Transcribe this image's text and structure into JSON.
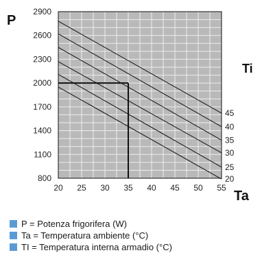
{
  "chart_data": {
    "type": "line",
    "title": "",
    "y_axis": {
      "letter": "P",
      "range": [
        800,
        2900
      ],
      "ticks": [
        800,
        1100,
        1400,
        1700,
        2000,
        2300,
        2600,
        2900
      ]
    },
    "x_axis": {
      "letter": "Ta",
      "range": [
        20,
        55
      ],
      "ticks": [
        20,
        25,
        30,
        35,
        40,
        45,
        50,
        55
      ]
    },
    "series_group_label": "Ti",
    "grid": true,
    "series": [
      {
        "name": "45",
        "x": [
          20,
          55
        ],
        "y": [
          2780,
          1620
        ]
      },
      {
        "name": "40",
        "x": [
          20,
          55
        ],
        "y": [
          2620,
          1450
        ]
      },
      {
        "name": "35",
        "x": [
          20,
          55
        ],
        "y": [
          2450,
          1280
        ]
      },
      {
        "name": "30",
        "x": [
          20,
          55
        ],
        "y": [
          2270,
          1120
        ]
      },
      {
        "name": "25",
        "x": [
          20,
          55
        ],
        "y": [
          2110,
          940
        ]
      },
      {
        "name": "20",
        "x": [
          20,
          55
        ],
        "y": [
          1950,
          790
        ]
      }
    ],
    "reference": {
      "x": 35,
      "y": 2000
    }
  },
  "legend": {
    "items": [
      {
        "text": "P = Potenza frigorifera (W)",
        "color": "#5b9bd5"
      },
      {
        "text": "Ta = Temperatura ambiente (°C)",
        "color": "#5b9bd5"
      },
      {
        "text": "TI = Temperatura interna armadio (°C)",
        "color": "#5b9bd5"
      }
    ]
  },
  "colors": {
    "plot_background": "#b9b9b9",
    "grid": "#eeeeee",
    "lines": "#111111"
  }
}
